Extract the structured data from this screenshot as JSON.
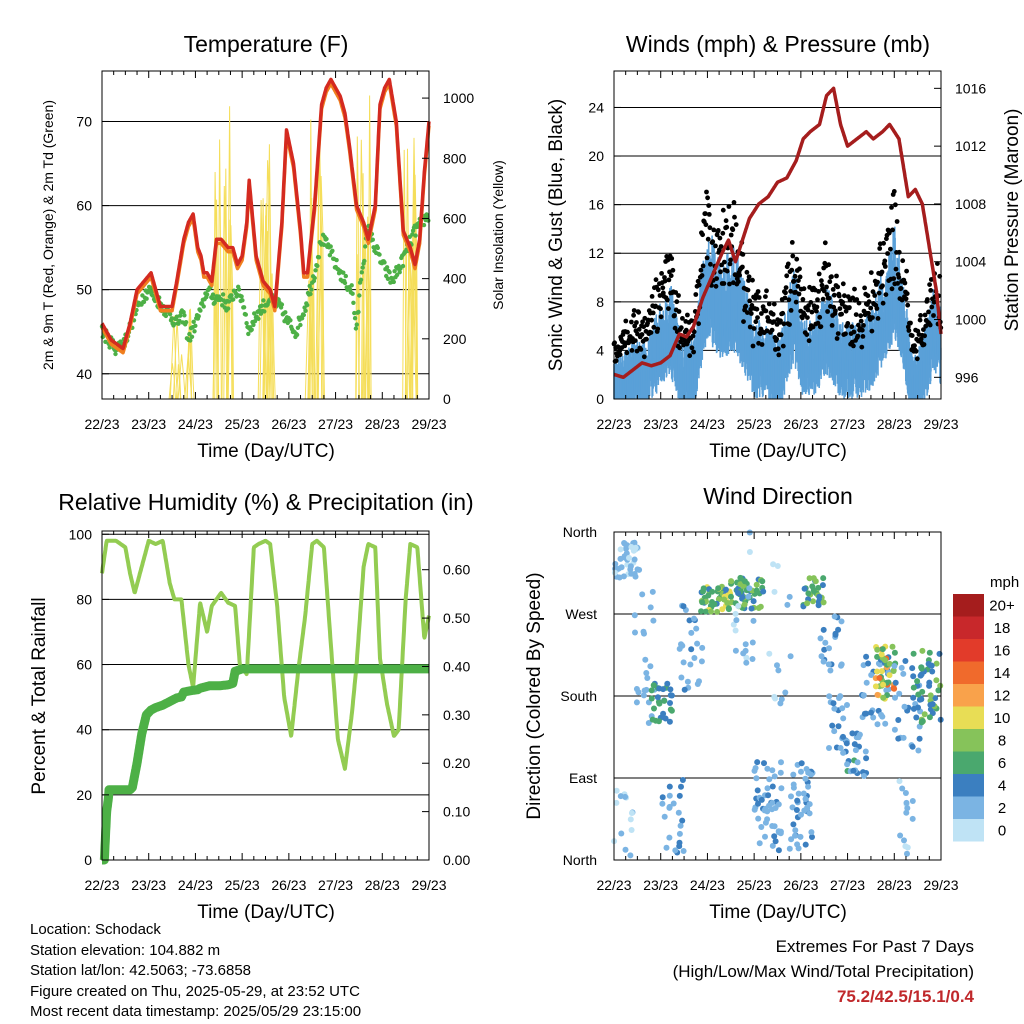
{
  "colors": {
    "red": "#d42a20",
    "orange": "#f07f1e",
    "green": "#4db046",
    "yellow": "#f5de5a",
    "black": "#000000",
    "blue": "#5aa0d8",
    "maroon": "#a51d1d",
    "rh": "#93cc52",
    "precip": "#4db046"
  },
  "x_ticks": [
    "22/23",
    "23/23",
    "24/23",
    "25/23",
    "26/23",
    "27/23",
    "28/23",
    "29/23"
  ],
  "chart_data": [
    {
      "type": "line",
      "title": "Temperature (F)",
      "xlabel": "Time (Day/UTC)",
      "ylabel": "2m & 9m T (Red, Orange) & 2m Td (Green)",
      "ylabel_right": "Solar Insolation (Yellow)",
      "ylim": [
        37,
        76
      ],
      "yticks": [
        40,
        50,
        60,
        70
      ],
      "ylim_right": [
        0,
        1090
      ],
      "yticks_right": [
        0,
        200,
        400,
        600,
        800,
        1000
      ],
      "x_day_range": [
        22,
        29
      ],
      "series": [
        {
          "key": "temp",
          "x": [
            22.0,
            22.2,
            22.45,
            22.6,
            22.75,
            22.9,
            23.05,
            23.15,
            23.25,
            23.35,
            23.5,
            23.6,
            23.75,
            23.85,
            23.95,
            24.05,
            24.12,
            24.18,
            24.25,
            24.35,
            24.45,
            24.55,
            24.7,
            24.8,
            24.9,
            25.0,
            25.1,
            25.15,
            25.2,
            25.3,
            25.45,
            25.6,
            25.7,
            25.85,
            25.95,
            26.1,
            26.25,
            26.32,
            26.4,
            26.55,
            26.7,
            26.8,
            26.9,
            27.0,
            27.1,
            27.2,
            27.3,
            27.45,
            27.6,
            27.7,
            27.85,
            27.95,
            28.05,
            28.15,
            28.3,
            28.45,
            28.6,
            28.7,
            28.8,
            28.9,
            29.0
          ],
          "y": [
            46,
            44,
            43,
            46,
            50,
            51,
            52,
            50,
            48,
            48,
            48,
            51,
            56,
            58,
            59,
            55,
            54,
            52,
            52,
            51,
            56,
            56,
            55,
            55,
            53,
            54,
            58,
            63,
            60,
            54,
            51,
            50,
            48,
            58,
            69,
            65,
            57,
            52,
            52,
            60,
            72,
            74,
            75,
            74,
            73,
            71,
            67,
            60,
            58,
            56,
            60,
            72,
            74,
            75,
            70,
            57,
            55,
            53,
            56,
            64,
            70
          ]
        },
        {
          "key": "dewpoint",
          "x": [
            22.0,
            22.3,
            22.5,
            22.7,
            22.85,
            23.0,
            23.15,
            23.3,
            23.45,
            23.6,
            23.75,
            23.85,
            24.0,
            24.15,
            24.25,
            24.4,
            24.55,
            24.7,
            24.85,
            25.0,
            25.15,
            25.3,
            25.45,
            25.6,
            25.8,
            26.0,
            26.15,
            26.35,
            26.55,
            26.7,
            26.85,
            27.0,
            27.2,
            27.35,
            27.45,
            27.55,
            27.7,
            27.85,
            28.0,
            28.2,
            28.4,
            28.55,
            28.7,
            28.85,
            29.0
          ],
          "y": [
            45,
            43,
            44,
            47,
            49,
            50,
            49,
            48,
            47,
            46,
            47,
            44,
            46,
            48,
            50,
            49,
            49,
            48,
            50,
            49,
            45,
            47,
            48,
            49,
            48,
            46,
            45,
            48,
            52,
            56,
            55,
            53,
            51,
            50,
            45,
            52,
            57,
            55,
            53,
            51,
            53,
            55,
            57,
            58,
            59
          ]
        }
      ],
      "solar_peaks": [
        {
          "x": 23.7,
          "w": 0.5,
          "v": 310
        },
        {
          "x": 24.58,
          "w": 0.45,
          "v": 1050
        },
        {
          "x": 25.58,
          "w": 0.45,
          "v": 1040
        },
        {
          "x": 26.55,
          "w": 0.45,
          "v": 1075
        },
        {
          "x": 27.55,
          "w": 0.45,
          "v": 1060
        },
        {
          "x": 28.55,
          "w": 0.45,
          "v": 1000
        }
      ]
    },
    {
      "type": "line",
      "title": "Winds (mph) & Pressure (mb)",
      "xlabel": "Time (Day/UTC)",
      "ylabel": "Sonic Wind & Gust (Blue, Black)",
      "ylabel_right": "Station Pressure (Maroon)",
      "ylim": [
        0,
        27
      ],
      "yticks": [
        0,
        4,
        8,
        12,
        16,
        20,
        24
      ],
      "ylim_right": [
        994.5,
        1017.2
      ],
      "yticks_right": [
        996,
        1000,
        1004,
        1008,
        1012,
        1016
      ],
      "x_day_range": [
        22,
        29
      ],
      "series": [
        {
          "key": "pressure",
          "x": [
            22.0,
            22.2,
            22.4,
            22.6,
            22.8,
            23.0,
            23.2,
            23.4,
            23.55,
            23.7,
            23.9,
            24.1,
            24.3,
            24.45,
            24.6,
            24.75,
            24.9,
            25.1,
            25.3,
            25.5,
            25.7,
            25.9,
            26.05,
            26.2,
            26.4,
            26.55,
            26.7,
            26.85,
            27.0,
            27.2,
            27.4,
            27.55,
            27.75,
            27.9,
            28.1,
            28.3,
            28.45,
            28.6,
            28.75,
            28.9,
            29.0
          ],
          "y": [
            996.2,
            996.0,
            996.5,
            997.0,
            996.8,
            997.0,
            997.5,
            999.0,
            998.8,
            999.5,
            1001.5,
            1003.0,
            1004.5,
            1005.5,
            1004.0,
            1005.5,
            1007.0,
            1008.0,
            1008.5,
            1009.5,
            1009.8,
            1011.0,
            1012.5,
            1013.0,
            1013.5,
            1015.5,
            1016.0,
            1013.5,
            1012.0,
            1012.5,
            1013.0,
            1012.5,
            1013.0,
            1013.5,
            1012.5,
            1008.5,
            1009.0,
            1008.0,
            1005.0,
            1002.0,
            999.0
          ]
        },
        {
          "key": "wind_level",
          "x": [
            22.0,
            22.4,
            22.7,
            23.0,
            23.2,
            23.45,
            23.7,
            24.0,
            24.3,
            24.55,
            24.8,
            25.0,
            25.25,
            25.55,
            25.85,
            26.05,
            26.3,
            26.55,
            26.85,
            27.05,
            27.3,
            27.55,
            27.8,
            28.0,
            28.2,
            28.4,
            28.6,
            28.85,
            29.0
          ],
          "y": [
            2,
            3,
            3,
            5,
            6,
            3,
            3,
            9,
            7,
            8,
            6,
            4,
            4,
            3,
            7,
            4,
            4,
            6,
            4,
            4,
            4,
            5,
            7,
            9,
            6,
            2,
            3,
            6,
            5
          ]
        }
      ]
    },
    {
      "type": "line",
      "title": "Relative Humidity (%) & Precipitation (in)",
      "xlabel": "Time (Day/UTC)",
      "ylabel": "Percent & Total Rainfall",
      "ylim": [
        0,
        101
      ],
      "yticks": [
        0,
        20,
        40,
        60,
        80,
        100
      ],
      "ylim_right": [
        0,
        0.68
      ],
      "yticks_right": [
        0.0,
        0.1,
        0.2,
        0.3,
        0.4,
        0.5,
        0.6
      ],
      "yticks_right_labels": [
        "0.00",
        "0.10",
        "0.20",
        "0.30",
        "0.40",
        "0.50",
        "0.60"
      ],
      "x_day_range": [
        22,
        29
      ],
      "series": [
        {
          "key": "rh",
          "x": [
            22.0,
            22.1,
            22.3,
            22.5,
            22.6,
            22.7,
            22.85,
            23.0,
            23.15,
            23.3,
            23.45,
            23.55,
            23.7,
            23.85,
            23.95,
            24.1,
            24.25,
            24.35,
            24.45,
            24.55,
            24.7,
            24.85,
            24.95,
            25.1,
            25.25,
            25.35,
            25.5,
            25.6,
            25.75,
            25.9,
            26.05,
            26.2,
            26.35,
            26.5,
            26.6,
            26.75,
            26.9,
            27.05,
            27.2,
            27.35,
            27.45,
            27.6,
            27.7,
            27.85,
            27.95,
            28.1,
            28.25,
            28.35,
            28.5,
            28.6,
            28.75,
            28.9,
            29.0
          ],
          "y": [
            88,
            98,
            98,
            96,
            88,
            82,
            90,
            98,
            97,
            98,
            85,
            80,
            80,
            60,
            53,
            79,
            70,
            78,
            80,
            82,
            79,
            78,
            60,
            57,
            96,
            97,
            98,
            97,
            78,
            50,
            38,
            58,
            75,
            97,
            98,
            96,
            66,
            37,
            28,
            45,
            60,
            90,
            97,
            96,
            62,
            48,
            38,
            40,
            80,
            97,
            96,
            68,
            75
          ]
        },
        {
          "key": "precip",
          "x": [
            22.0,
            22.05,
            22.1,
            22.14,
            22.15,
            22.2,
            22.3,
            22.45,
            22.6,
            22.65,
            22.75,
            22.85,
            22.95,
            23.05,
            23.15,
            23.3,
            23.4,
            23.5,
            23.6,
            23.7,
            23.75,
            23.9,
            24.05,
            24.1,
            24.3,
            24.5,
            24.7,
            24.8,
            24.85,
            25.0,
            25.5,
            26.0,
            27.0,
            28.0,
            29.0
          ],
          "y": [
            0.0,
            0.0,
            0.1,
            0.13,
            0.145,
            0.145,
            0.145,
            0.145,
            0.145,
            0.15,
            0.2,
            0.26,
            0.3,
            0.31,
            0.315,
            0.32,
            0.325,
            0.33,
            0.335,
            0.337,
            0.347,
            0.35,
            0.352,
            0.355,
            0.36,
            0.36,
            0.362,
            0.365,
            0.39,
            0.395,
            0.395,
            0.395,
            0.395,
            0.395,
            0.395
          ]
        }
      ]
    },
    {
      "type": "scatter",
      "title": "Wind Direction",
      "xlabel": "Time (Day/UTC)",
      "ylabel": "Direction (Colored By Speed)",
      "yticks_labels": [
        "North",
        "East",
        "South",
        "West",
        "North"
      ],
      "ylim": [
        0,
        360
      ],
      "x_day_range": [
        22,
        29
      ],
      "legend": {
        "title": "mph",
        "labels": [
          "20+",
          "18",
          "16",
          "14",
          "12",
          "10",
          "8",
          "6",
          "4",
          "2",
          "0"
        ],
        "colors": [
          "#a51d1d",
          "#c8282b",
          "#e23b2a",
          "#f06a2c",
          "#f9a24b",
          "#e8dd55",
          "#86c35a",
          "#4aa86e",
          "#3b7fc0",
          "#7bb4e3",
          "#bfe3f5"
        ]
      },
      "clusters": [
        {
          "x": 22.0,
          "x2": 22.55,
          "d": [
            310,
            350
          ],
          "n": 40,
          "s": [
            0,
            3
          ]
        },
        {
          "x": 22.0,
          "x2": 22.4,
          "d": [
            5,
            80
          ],
          "n": 14,
          "s": [
            0,
            2
          ]
        },
        {
          "x": 22.4,
          "x2": 22.9,
          "d": [
            150,
            300
          ],
          "n": 22,
          "s": [
            1,
            3
          ]
        },
        {
          "x": 22.8,
          "x2": 23.25,
          "d": [
            150,
            195
          ],
          "n": 28,
          "s": [
            3,
            7
          ]
        },
        {
          "x": 23.0,
          "x2": 23.5,
          "d": [
            5,
            90
          ],
          "n": 22,
          "s": [
            1,
            4
          ]
        },
        {
          "x": 23.4,
          "x2": 23.9,
          "d": [
            180,
            280
          ],
          "n": 24,
          "s": [
            1,
            4
          ]
        },
        {
          "x": 23.85,
          "x2": 24.5,
          "d": [
            270,
            300
          ],
          "n": 55,
          "s": [
            4,
            11
          ]
        },
        {
          "x": 24.5,
          "x2": 25.2,
          "d": [
            275,
            310
          ],
          "n": 50,
          "s": [
            3,
            9
          ]
        },
        {
          "x": 24.4,
          "x2": 25.0,
          "d": [
            200,
            360
          ],
          "n": 18,
          "s": [
            0,
            2
          ]
        },
        {
          "x": 25.0,
          "x2": 25.6,
          "d": [
            10,
            110
          ],
          "n": 50,
          "s": [
            1,
            4
          ]
        },
        {
          "x": 25.3,
          "x2": 25.8,
          "d": [
            150,
            340
          ],
          "n": 14,
          "s": [
            0,
            3
          ]
        },
        {
          "x": 25.75,
          "x2": 26.25,
          "d": [
            10,
            110
          ],
          "n": 45,
          "s": [
            1,
            4
          ]
        },
        {
          "x": 26.05,
          "x2": 26.5,
          "d": [
            275,
            310
          ],
          "n": 28,
          "s": [
            3,
            9
          ]
        },
        {
          "x": 26.4,
          "x2": 26.9,
          "d": [
            200,
            270
          ],
          "n": 20,
          "s": [
            1,
            5
          ]
        },
        {
          "x": 26.6,
          "x2": 27.0,
          "d": [
            110,
            180
          ],
          "n": 20,
          "s": [
            1,
            5
          ]
        },
        {
          "x": 26.9,
          "x2": 27.4,
          "d": [
            90,
            140
          ],
          "n": 25,
          "s": [
            2,
            6
          ]
        },
        {
          "x": 27.3,
          "x2": 27.9,
          "d": [
            140,
            225
          ],
          "n": 35,
          "s": [
            1,
            5
          ]
        },
        {
          "x": 27.6,
          "x2": 28.05,
          "d": [
            175,
            235
          ],
          "n": 40,
          "s": [
            5,
            14
          ]
        },
        {
          "x": 28.0,
          "x2": 28.6,
          "d": [
            110,
            220
          ],
          "n": 30,
          "s": [
            1,
            5
          ]
        },
        {
          "x": 28.1,
          "x2": 28.5,
          "d": [
            5,
            100
          ],
          "n": 14,
          "s": [
            0,
            3
          ]
        },
        {
          "x": 28.4,
          "x2": 29.0,
          "d": [
            150,
            230
          ],
          "n": 45,
          "s": [
            3,
            8
          ]
        }
      ]
    }
  ],
  "info": {
    "location": "Location: Schodack",
    "elevation": "Station elevation: 104.882 m",
    "latlon": "Station lat/lon: 42.5063; -73.6858",
    "created": "Figure created on Thu, 2025-05-29, at 23:52 UTC",
    "recent": "Most recent data timestamp: 2025/05/29 23:15:00"
  },
  "extremes": {
    "title": "Extremes For Past 7 Days",
    "subtitle": "(High/Low/Max Wind/Total Precipitation)",
    "values": "75.2/42.5/15.1/0.4"
  }
}
